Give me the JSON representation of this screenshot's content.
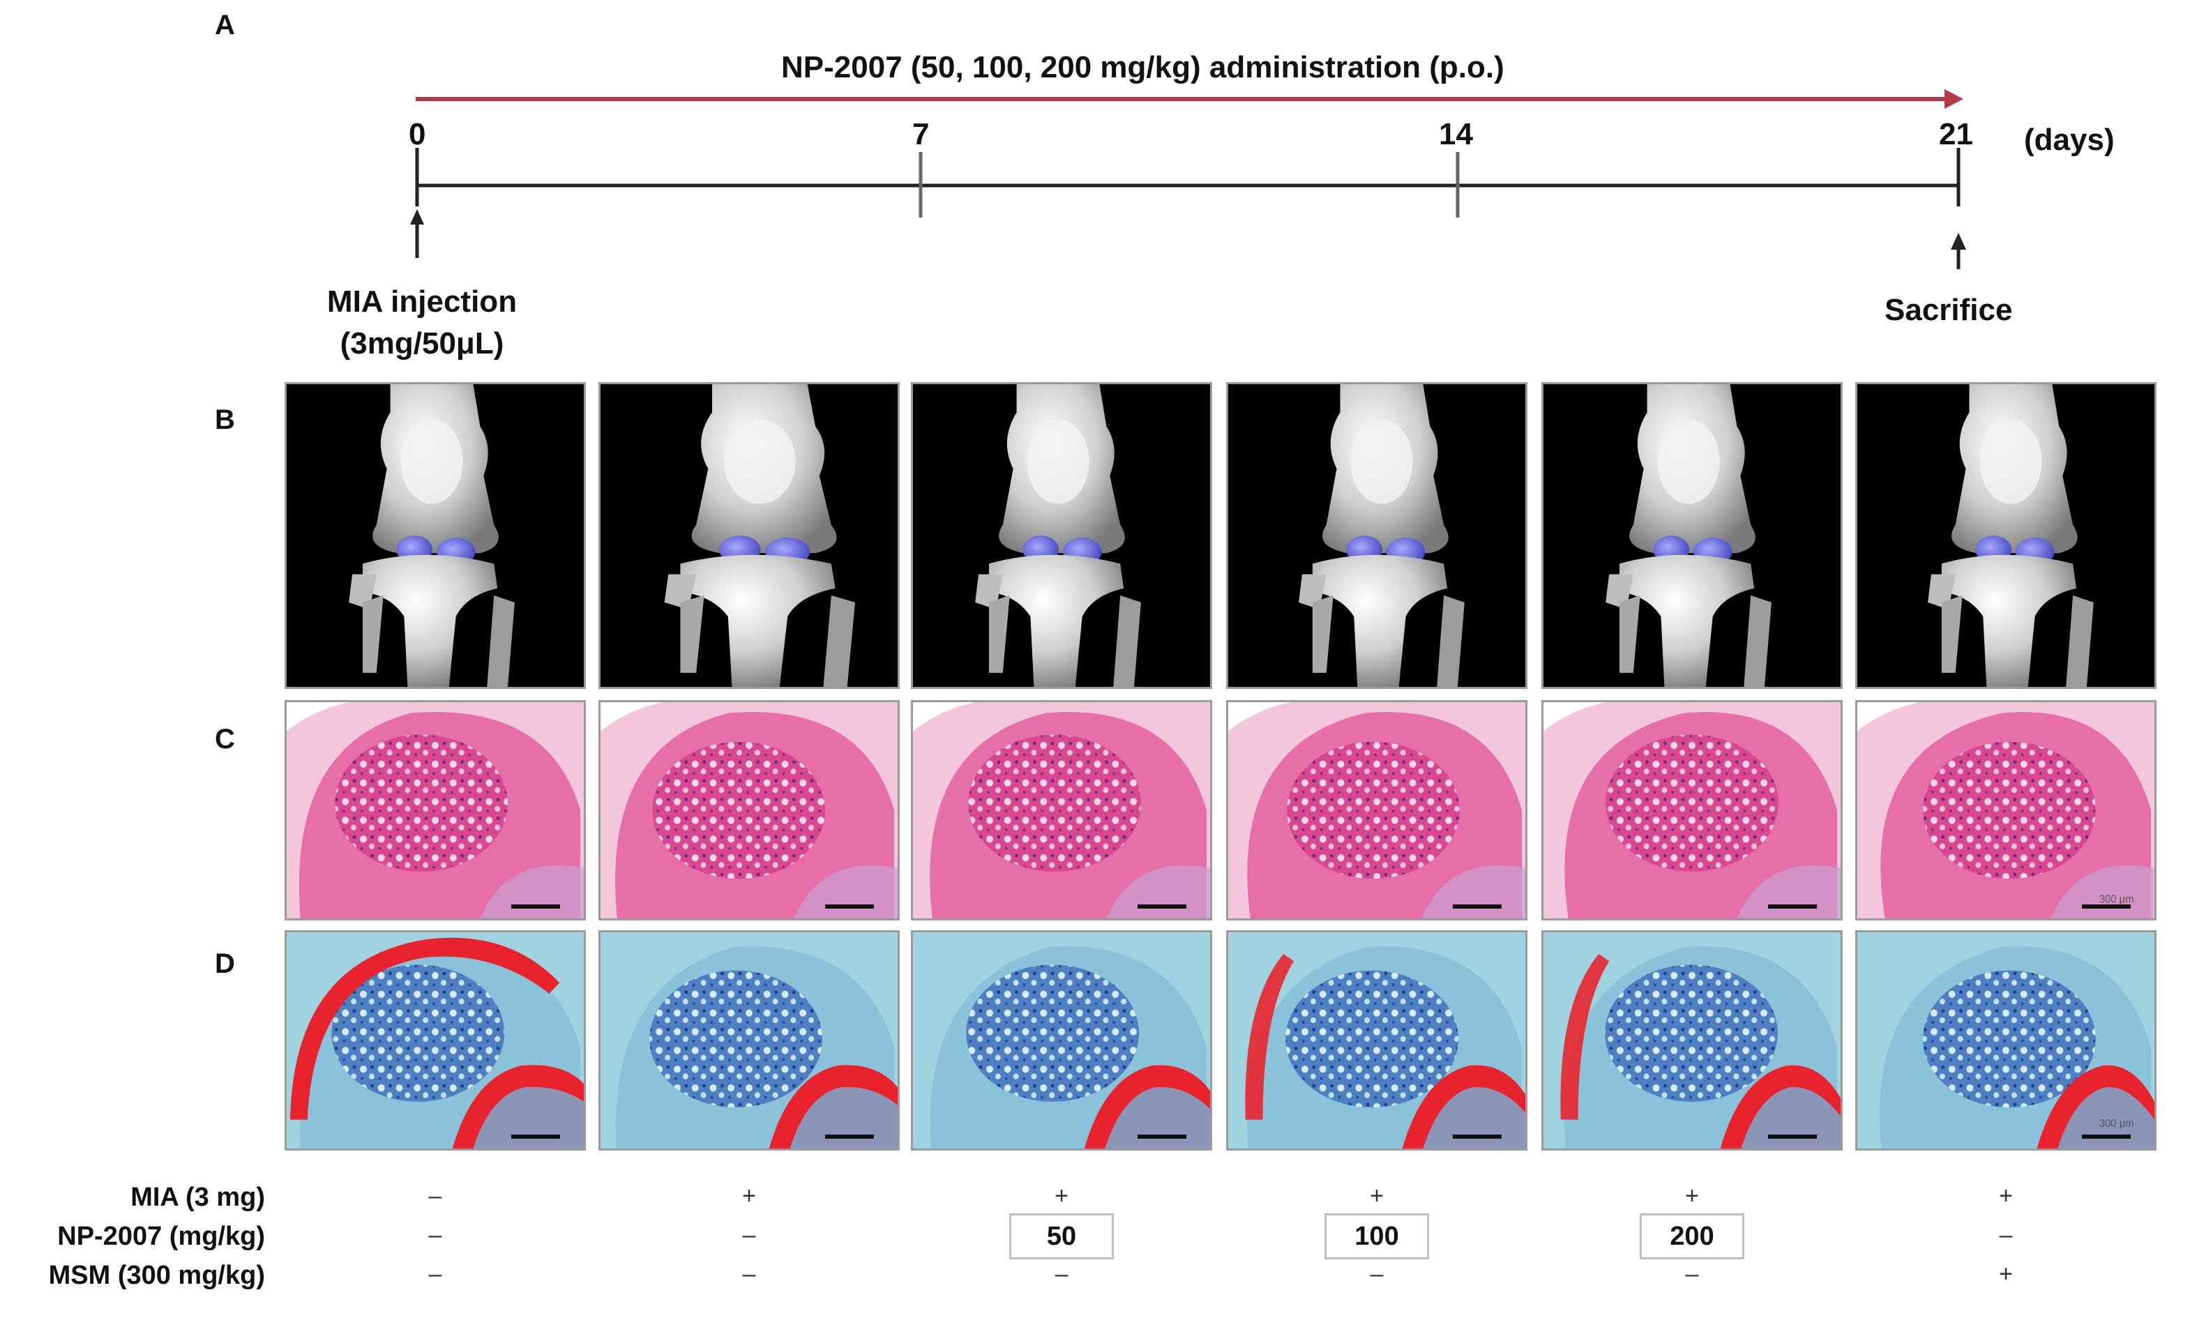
{
  "panels": {
    "a": "A",
    "b": "B",
    "c": "C",
    "d": "D"
  },
  "timeline": {
    "admin_label": "NP-2007 (50, 100, 200 mg/kg) administration (p.o.)",
    "day_ticks": [
      "0",
      "7",
      "14",
      "21"
    ],
    "unit": "(days)",
    "start_event": [
      "MIA injection",
      "(3mg/50μL)"
    ],
    "end_event": "Sacrifice",
    "colors": {
      "arrow": "#b23a48",
      "line": "#222222"
    }
  },
  "scale_text": "300 μm",
  "conditions": {
    "rows": [
      {
        "label": "MIA (3 mg)",
        "values": [
          "–",
          "+",
          "+",
          "+",
          "+",
          "+"
        ]
      },
      {
        "label": "NP-2007 (mg/kg)",
        "values": [
          "–",
          "–",
          "50",
          "100",
          "200",
          "–"
        ]
      },
      {
        "label": "MSM (300 mg/kg)",
        "values": [
          "–",
          "–",
          "–",
          "–",
          "–",
          "+"
        ]
      }
    ]
  },
  "colors": {
    "ct_background": "#000000",
    "bone": "#d9d9d9",
    "cartilage_ct": "#6f72e0",
    "he_pink": "#e1519a",
    "he_light": "#f4c6dc",
    "safranin_red": "#e8232e",
    "fast_green": "#9fd3df"
  }
}
